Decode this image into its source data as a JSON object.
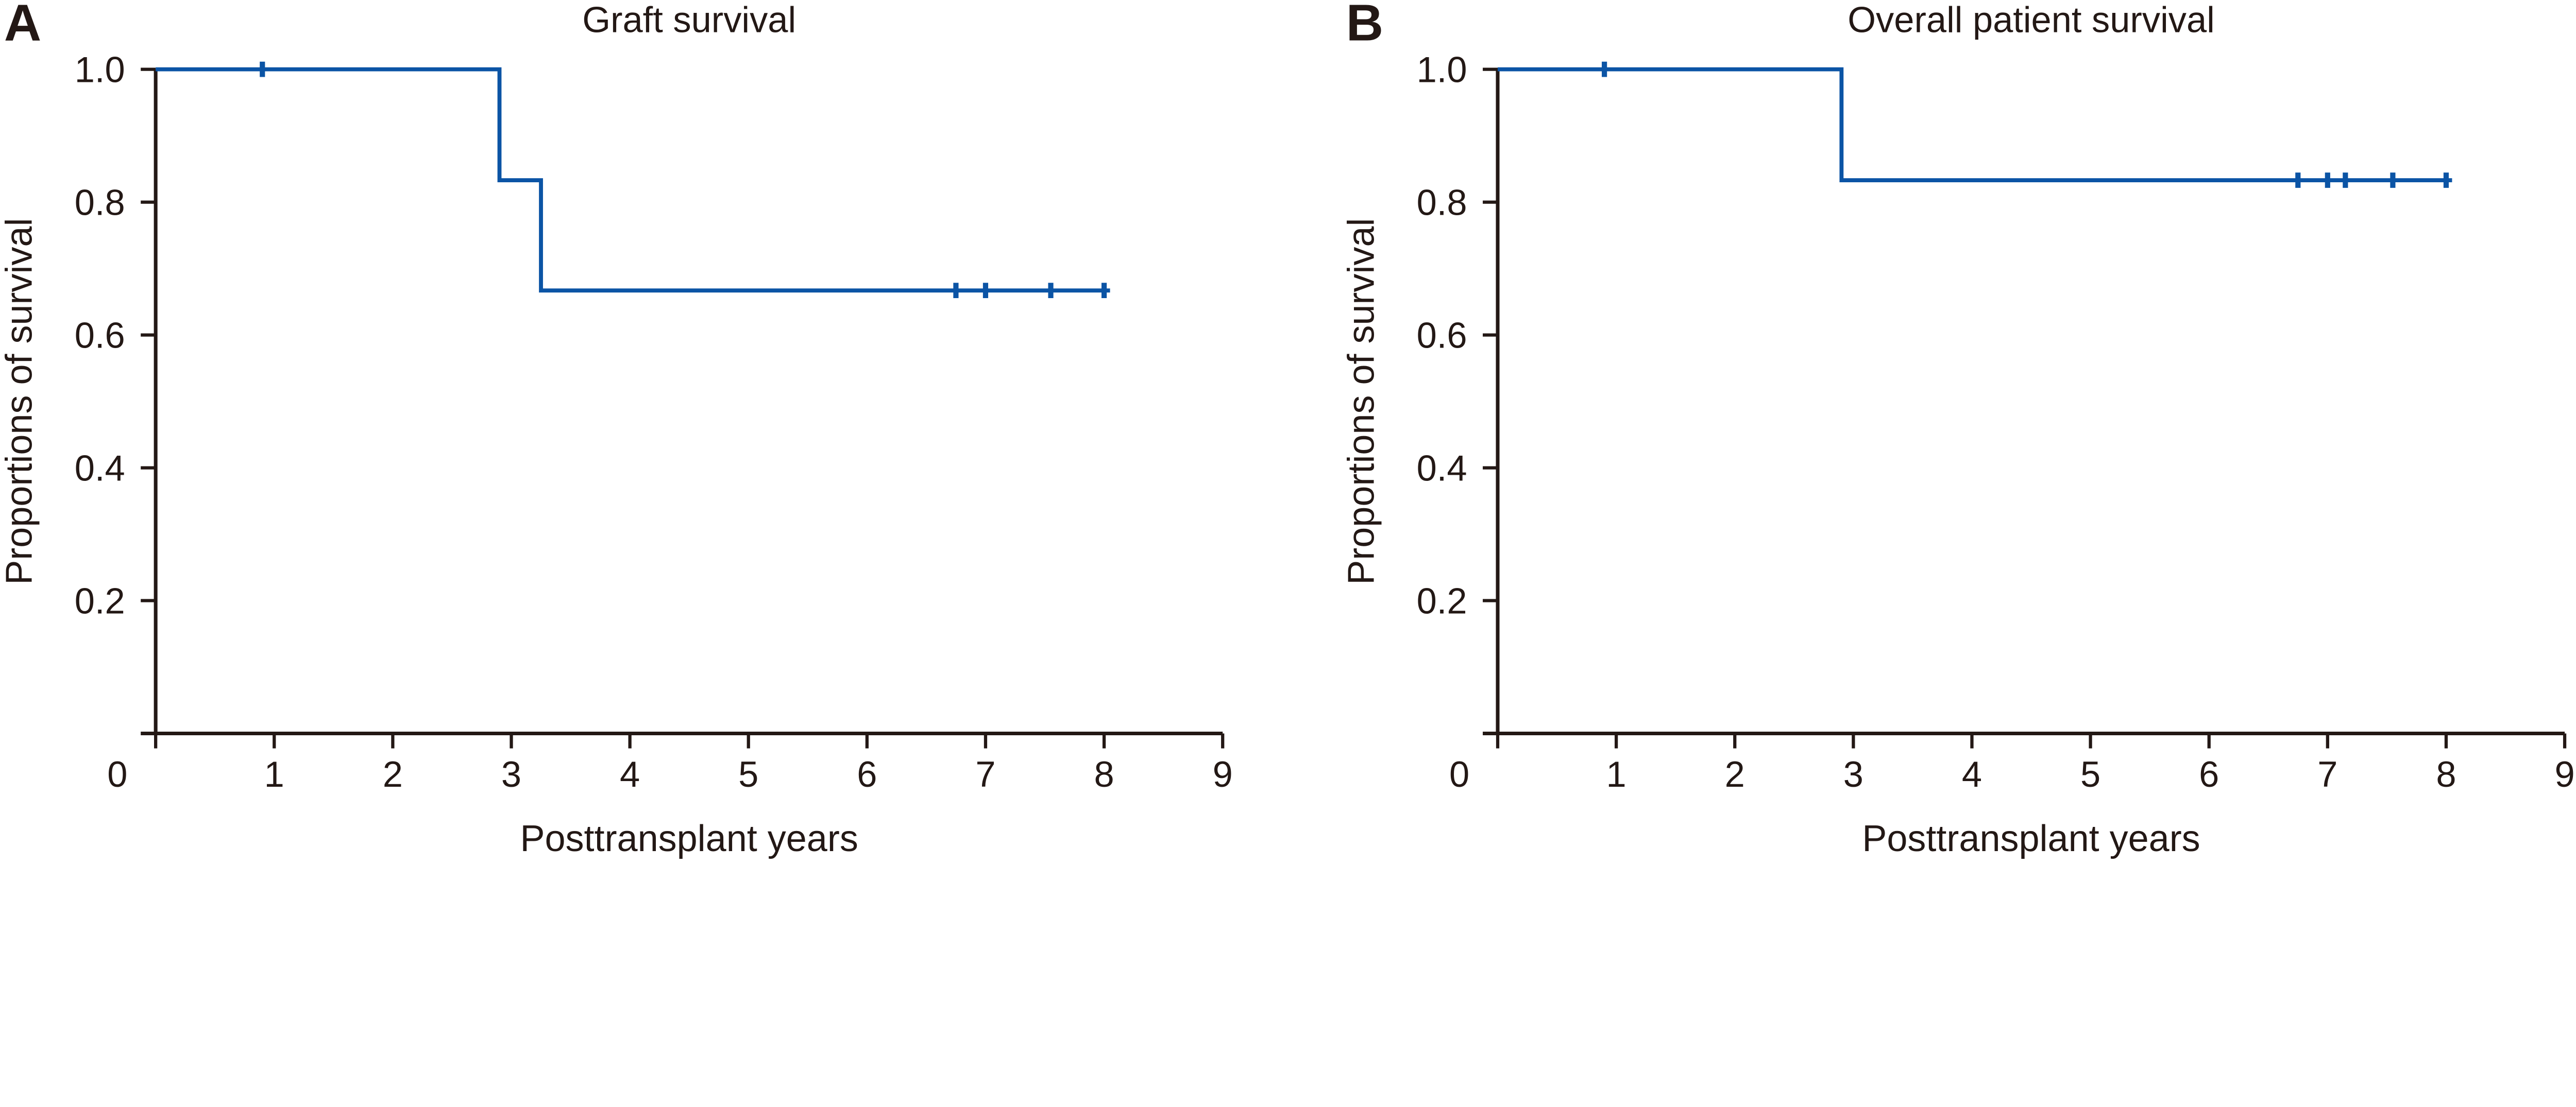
{
  "colors": {
    "background": "#ffffff",
    "ink": "#231815",
    "curve": "#0B54A5"
  },
  "chart_data": [
    {
      "panel_label": "A",
      "type": "line",
      "subtype": "kaplan-meier-step",
      "title": "Graft survival",
      "xlabel": "Posttransplant years",
      "ylabel": "Proportions of survival",
      "xlim": [
        0,
        9
      ],
      "ylim": [
        0,
        1.0
      ],
      "xticks": [
        0,
        1,
        2,
        3,
        4,
        5,
        6,
        7,
        8,
        9
      ],
      "ytick_values": [
        1.0,
        0.8,
        0.6,
        0.4,
        0.2
      ],
      "ytick_labels": [
        "1.0",
        "0.8",
        "0.6",
        "0.4",
        "0.2"
      ],
      "grid": false,
      "legend": null,
      "series": [
        {
          "name": "Graft survival",
          "steps": [
            {
              "x": 0,
              "y": 1.0
            },
            {
              "x": 2.9,
              "y": 0.833
            },
            {
              "x": 3.25,
              "y": 0.667
            }
          ],
          "end_x": 8.05,
          "censor_marker": "vertical-tick",
          "censor_marks": [
            {
              "x": 0.9,
              "y": 1.0
            },
            {
              "x": 6.75,
              "y": 0.667
            },
            {
              "x": 7.0,
              "y": 0.667
            },
            {
              "x": 7.55,
              "y": 0.667
            },
            {
              "x": 8.0,
              "y": 0.667
            }
          ]
        }
      ]
    },
    {
      "panel_label": "B",
      "type": "line",
      "subtype": "kaplan-meier-step",
      "title": "Overall patient survival",
      "xlabel": "Posttransplant years",
      "ylabel": "Proportions of survival",
      "xlim": [
        0,
        9
      ],
      "ylim": [
        0,
        1.0
      ],
      "xticks": [
        0,
        1,
        2,
        3,
        4,
        5,
        6,
        7,
        8,
        9
      ],
      "ytick_values": [
        1.0,
        0.8,
        0.6,
        0.4,
        0.2
      ],
      "ytick_labels": [
        "1.0",
        "0.8",
        "0.6",
        "0.4",
        "0.2"
      ],
      "grid": false,
      "legend": null,
      "series": [
        {
          "name": "Overall patient survival",
          "steps": [
            {
              "x": 0,
              "y": 1.0
            },
            {
              "x": 2.9,
              "y": 0.833
            }
          ],
          "end_x": 8.05,
          "censor_marker": "vertical-tick",
          "censor_marks": [
            {
              "x": 0.9,
              "y": 1.0
            },
            {
              "x": 6.75,
              "y": 0.833
            },
            {
              "x": 7.0,
              "y": 0.833
            },
            {
              "x": 7.15,
              "y": 0.833
            },
            {
              "x": 7.55,
              "y": 0.833
            },
            {
              "x": 8.0,
              "y": 0.833
            }
          ]
        }
      ]
    }
  ]
}
